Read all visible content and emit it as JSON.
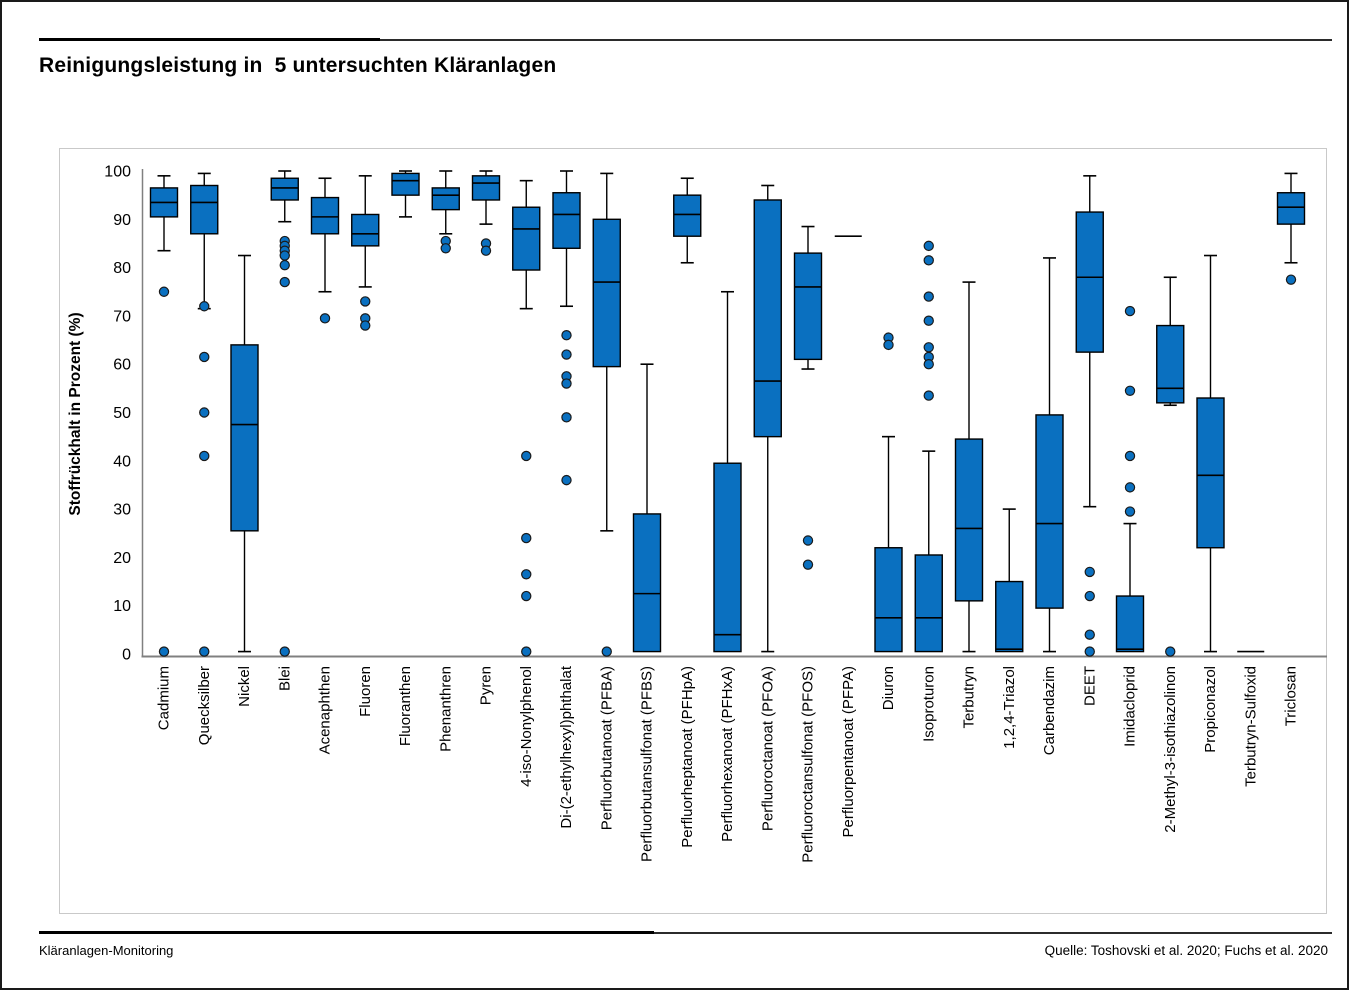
{
  "chart_data": {
    "type": "boxplot",
    "title": "Reinigungsleistung in  5 untersuchten Kläranlagen",
    "y_axis": {
      "label": "Stoffrückhalt in Prozent (%)",
      "min": 0,
      "max": 100,
      "tick_step": 10,
      "ticks": [
        0,
        10,
        20,
        30,
        40,
        50,
        60,
        70,
        80,
        90,
        100
      ]
    },
    "grid": "off",
    "legend": "none",
    "colors": {
      "box_fill": "#0a70c0",
      "box_stroke": "#000000",
      "axis": "#808080",
      "panel_border": "#c9c9c9"
    },
    "categories": [
      {
        "label": "Cadmium",
        "whisker_low": 83.5,
        "q1": 90.5,
        "median": 93.5,
        "q3": 96.5,
        "whisker_high": 99,
        "outliers": [
          75,
          0.5
        ]
      },
      {
        "label": "Quecksilber",
        "whisker_low": 71.5,
        "q1": 87,
        "median": 93.5,
        "q3": 97,
        "whisker_high": 99.5,
        "outliers": [
          72,
          61.5,
          50,
          41,
          0.5
        ]
      },
      {
        "label": "Nickel",
        "whisker_low": 0.5,
        "q1": 25.5,
        "median": 47.5,
        "q3": 64,
        "whisker_high": 82.5,
        "outliers": []
      },
      {
        "label": "Blei",
        "whisker_low": 89.5,
        "q1": 94,
        "median": 96.5,
        "q3": 98.5,
        "whisker_high": 100,
        "outliers": [
          85.5,
          84.5,
          83.5,
          82.5,
          80.5,
          77,
          0.5
        ]
      },
      {
        "label": "Acenaphthen",
        "whisker_low": 75,
        "q1": 87,
        "median": 90.5,
        "q3": 94.5,
        "whisker_high": 98.5,
        "outliers": [
          69.5
        ]
      },
      {
        "label": "Fluoren",
        "whisker_low": 76,
        "q1": 84.5,
        "median": 87,
        "q3": 91,
        "whisker_high": 99,
        "outliers": [
          73,
          69.5,
          68
        ]
      },
      {
        "label": "Fluoranthen",
        "whisker_low": 90.5,
        "q1": 95,
        "median": 98,
        "q3": 99.5,
        "whisker_high": 100,
        "outliers": []
      },
      {
        "label": "Phenanthren",
        "whisker_low": 87,
        "q1": 92,
        "median": 95,
        "q3": 96.5,
        "whisker_high": 100,
        "outliers": [
          85.5,
          84
        ]
      },
      {
        "label": "Pyren",
        "whisker_low": 89,
        "q1": 94,
        "median": 97.5,
        "q3": 99,
        "whisker_high": 100,
        "outliers": [
          85,
          83.5
        ]
      },
      {
        "label": "4-iso-Nonylphenol",
        "whisker_low": 71.5,
        "q1": 79.5,
        "median": 88,
        "q3": 92.5,
        "whisker_high": 98,
        "outliers": [
          41,
          24,
          16.5,
          12,
          0.5
        ]
      },
      {
        "label": "Di-(2-ethylhexyl)phthalat",
        "whisker_low": 72,
        "q1": 84,
        "median": 91,
        "q3": 95.5,
        "whisker_high": 100,
        "outliers": [
          66,
          62,
          57.5,
          56,
          49,
          36
        ]
      },
      {
        "label": "Perfluorbutanoat (PFBA)",
        "whisker_low": 25.5,
        "q1": 59.5,
        "median": 77,
        "q3": 90,
        "whisker_high": 99.5,
        "outliers": [
          0.5
        ]
      },
      {
        "label": "Perfluorbutansulfonat (PFBS)",
        "whisker_low": 0.5,
        "q1": 0.5,
        "median": 12.5,
        "q3": 29,
        "whisker_high": 60,
        "outliers": []
      },
      {
        "label": "Perfluorheptanoat (PFHpA)",
        "whisker_low": 81,
        "q1": 86.5,
        "median": 91,
        "q3": 95,
        "whisker_high": 98.5,
        "outliers": []
      },
      {
        "label": "Perfluorhexanoat (PFHxA)",
        "whisker_low": 0.5,
        "q1": 0.5,
        "median": 4,
        "q3": 39.5,
        "whisker_high": 75,
        "outliers": []
      },
      {
        "label": "Perfluoroctanoat (PFOA)",
        "whisker_low": 0.5,
        "q1": 45,
        "median": 56.5,
        "q3": 94,
        "whisker_high": 97,
        "outliers": []
      },
      {
        "label": "Perfluoroctansulfonat (PFOS)",
        "whisker_low": 59,
        "q1": 61,
        "median": 76,
        "q3": 83,
        "whisker_high": 88.5,
        "outliers": [
          23.5,
          18.5
        ]
      },
      {
        "label": "Perfluorpentanoat (PFPA)",
        "whisker_low": 86.5,
        "q1": 86.5,
        "median": 86.5,
        "q3": 86.5,
        "whisker_high": 86.5,
        "outliers": []
      },
      {
        "label": "Diuron",
        "whisker_low": 0.5,
        "q1": 0.5,
        "median": 7.5,
        "q3": 22,
        "whisker_high": 45,
        "outliers": [
          65.5,
          64
        ]
      },
      {
        "label": "Isoproturon",
        "whisker_low": 0.5,
        "q1": 0.5,
        "median": 7.5,
        "q3": 20.5,
        "whisker_high": 42,
        "outliers": [
          84.5,
          81.5,
          74,
          69,
          63.5,
          61.5,
          60,
          53.5
        ]
      },
      {
        "label": "Terbutryn",
        "whisker_low": 0.5,
        "q1": 11,
        "median": 26,
        "q3": 44.5,
        "whisker_high": 77,
        "outliers": []
      },
      {
        "label": "1,2,4-Triazol",
        "whisker_low": 0.5,
        "q1": 0.5,
        "median": 1,
        "q3": 15,
        "whisker_high": 30,
        "outliers": []
      },
      {
        "label": "Carbendazim",
        "whisker_low": 0.5,
        "q1": 9.5,
        "median": 27,
        "q3": 49.5,
        "whisker_high": 82,
        "outliers": []
      },
      {
        "label": "DEET",
        "whisker_low": 30.5,
        "q1": 62.5,
        "median": 78,
        "q3": 91.5,
        "whisker_high": 99,
        "outliers": [
          17,
          12,
          4,
          0.5
        ]
      },
      {
        "label": "Imidacloprid",
        "whisker_low": 0.5,
        "q1": 0.5,
        "median": 1,
        "q3": 12,
        "whisker_high": 27,
        "outliers": [
          71,
          54.5,
          41,
          34.5,
          29.5
        ]
      },
      {
        "label": "2-Methyl-3-isothiazolinon",
        "whisker_low": 51.5,
        "q1": 52,
        "median": 55,
        "q3": 68,
        "whisker_high": 78,
        "outliers": [
          0.5
        ]
      },
      {
        "label": "Propiconazol",
        "whisker_low": 0.5,
        "q1": 22,
        "median": 37,
        "q3": 53,
        "whisker_high": 82.5,
        "outliers": []
      },
      {
        "label": "Terbutryn-Sulfoxid",
        "whisker_low": 0.5,
        "q1": 0.5,
        "median": 0.5,
        "q3": 0.5,
        "whisker_high": 0.5,
        "outliers": []
      },
      {
        "label": "Triclosan",
        "whisker_low": 81,
        "q1": 89,
        "median": 92.5,
        "q3": 95.5,
        "whisker_high": 99.5,
        "outliers": [
          77.5
        ]
      }
    ]
  },
  "footer": {
    "left": "Kläranlagen-Monitoring",
    "source": "Quelle: Toshovski et al. 2020; Fuchs et al. 2020"
  }
}
